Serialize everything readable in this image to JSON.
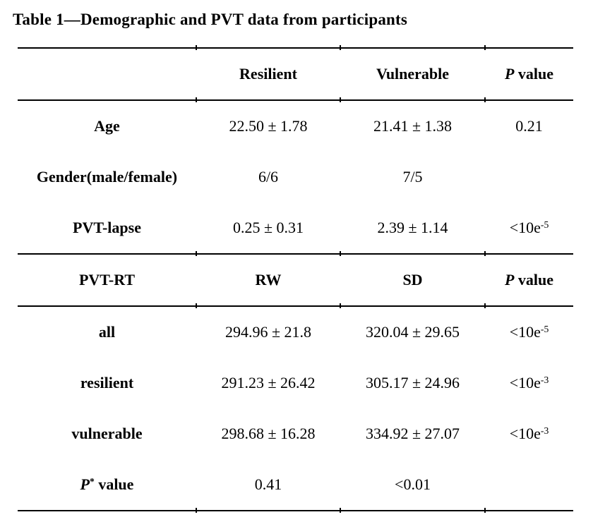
{
  "colors": {
    "text": "#000000",
    "background": "#ffffff",
    "rule": "#000000"
  },
  "title": "Table 1—Demographic and PVT data from participants",
  "table": {
    "sections": [
      {
        "header": [
          "",
          "Resilient",
          "Vulnerable",
          "P value"
        ],
        "rows": [
          [
            "Age",
            "22.50 ± 1.78",
            "21.41 ± 1.38",
            "0.21"
          ],
          [
            "Gender(male/female)",
            "6/6",
            "7/5",
            ""
          ],
          [
            "PVT-lapse",
            "0.25 ± 0.31",
            "2.39 ± 1.14",
            "<10e-5"
          ]
        ]
      },
      {
        "header": [
          "PVT-RT",
          "RW",
          "SD",
          "P value"
        ],
        "rows": [
          [
            "all",
            "294.96 ± 21.8",
            "320.04 ± 29.65",
            "<10e-5"
          ],
          [
            "resilient",
            "291.23 ± 26.42",
            "305.17 ± 24.96",
            "<10e-3"
          ],
          [
            "vulnerable",
            "298.68 ± 16.28",
            "334.92 ± 27.07",
            "<10e-3"
          ],
          [
            "P* value",
            "0.41",
            "<0.01",
            ""
          ]
        ]
      }
    ]
  }
}
